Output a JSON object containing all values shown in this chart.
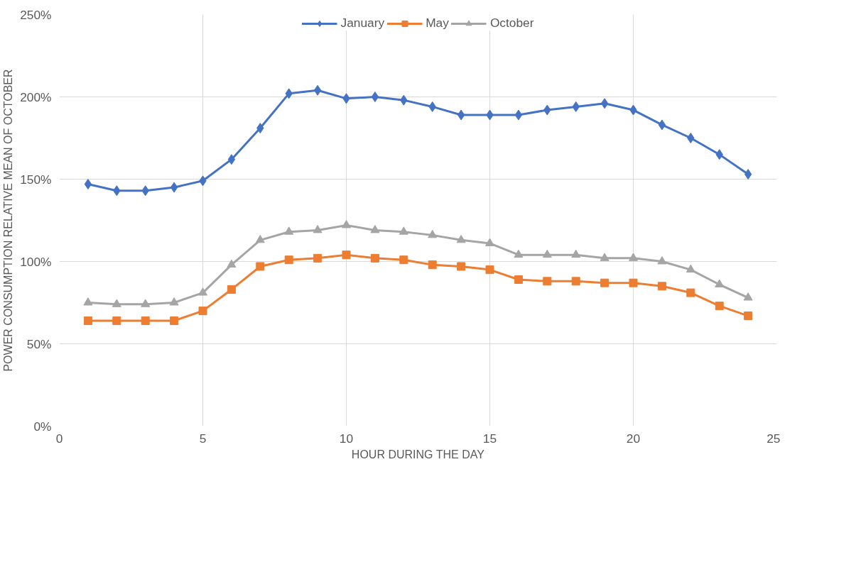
{
  "chart_data": {
    "type": "line",
    "xlabel": "HOUR DURING THE DAY",
    "ylabel": "POWER CONSUMPTION RELATIVE MEAN OF OCTOBER",
    "x": [
      1,
      2,
      3,
      4,
      5,
      6,
      7,
      8,
      9,
      10,
      11,
      12,
      13,
      14,
      15,
      16,
      17,
      18,
      19,
      20,
      21,
      22,
      23,
      24
    ],
    "series": [
      {
        "name": "January",
        "color": "#4472c4",
        "marker": "diamond",
        "values": [
          147,
          143,
          143,
          145,
          149,
          162,
          181,
          202,
          204,
          199,
          200,
          198,
          194,
          189,
          189,
          189,
          192,
          194,
          196,
          192,
          183,
          175,
          165,
          153
        ]
      },
      {
        "name": "May",
        "color": "#ed7d31",
        "marker": "square",
        "values": [
          64,
          64,
          64,
          64,
          70,
          83,
          97,
          101,
          102,
          104,
          102,
          101,
          98,
          97,
          95,
          89,
          88,
          88,
          87,
          87,
          85,
          81,
          73,
          67
        ]
      },
      {
        "name": "October",
        "color": "#a5a5a5",
        "marker": "triangle",
        "values": [
          75,
          74,
          74,
          75,
          81,
          98,
          113,
          118,
          119,
          122,
          119,
          118,
          116,
          113,
          111,
          104,
          104,
          104,
          102,
          102,
          100,
          95,
          86,
          78
        ]
      }
    ],
    "xlim": [
      0,
      25
    ],
    "xticks": [
      0,
      5,
      10,
      15,
      20,
      25
    ],
    "ylim": [
      0,
      250
    ],
    "yticks": [
      {
        "value": 0,
        "label": "0%"
      },
      {
        "value": 50,
        "label": "50%"
      },
      {
        "value": 100,
        "label": "100%"
      },
      {
        "value": 150,
        "label": "150%"
      },
      {
        "value": 200,
        "label": "200%"
      },
      {
        "value": 250,
        "label": "250%"
      }
    ],
    "grid": true,
    "legend": "top",
    "line_style": "solid"
  }
}
